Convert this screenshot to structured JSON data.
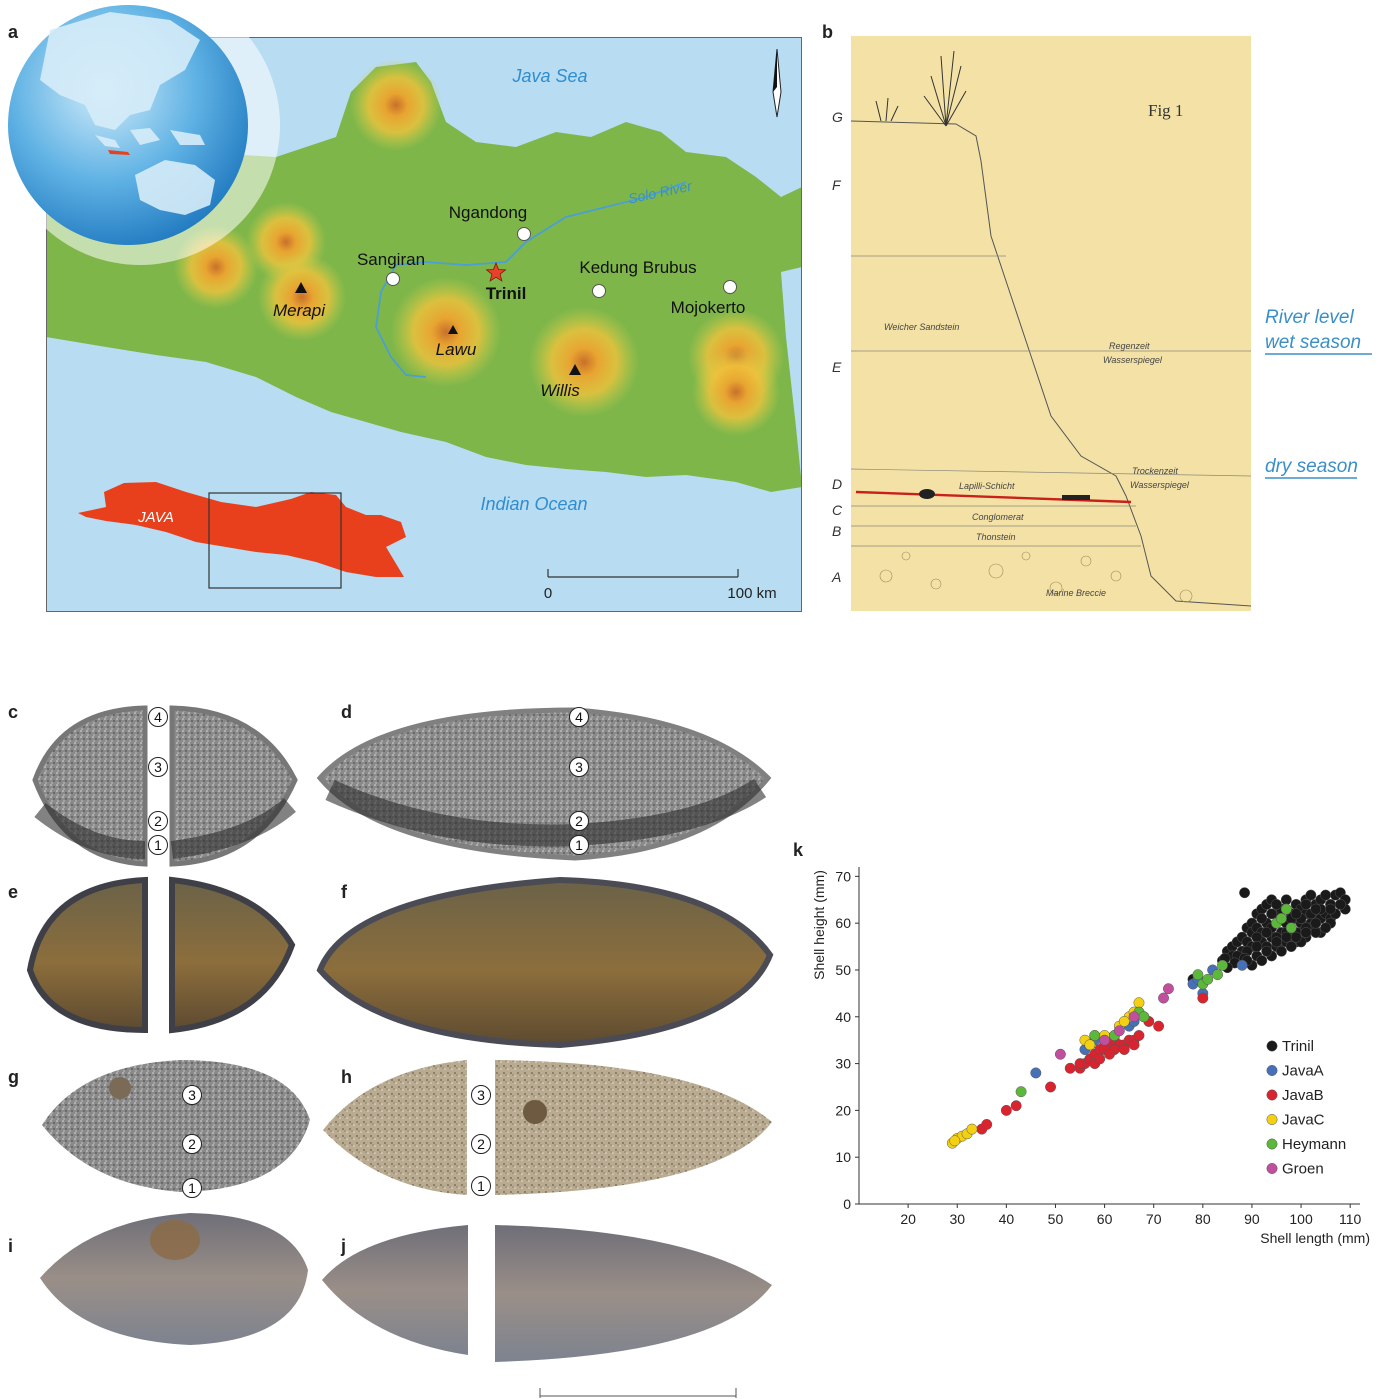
{
  "panels": {
    "a": "a",
    "b": "b",
    "c": "c",
    "d": "d",
    "e": "e",
    "f": "f",
    "g": "g",
    "h": "h",
    "i": "i",
    "j": "j",
    "k": "k"
  },
  "map": {
    "sea_north": "Java Sea",
    "sea_south": "Indian Ocean",
    "river": "Solo River",
    "sites": [
      "Ngandong",
      "Sangiran",
      "Kedung Brubus",
      "Mojokerto"
    ],
    "main_site": "Trinil",
    "volcanoes": [
      "Merapi",
      "Lawu",
      "Willis"
    ],
    "inset_label": "JAVA",
    "scale_start": "0",
    "scale_end": "100 km"
  },
  "section": {
    "layers": [
      "G",
      "F",
      "E",
      "D",
      "C",
      "B",
      "A"
    ],
    "fig_title": "Fig 1",
    "notes": {
      "weicher": "Weicher Sandstein",
      "regenzeit": "Regenzeit",
      "wasserspiegel_wet": "Wasserspiegel",
      "trockenzeit": "Trockenzeit",
      "wasserspiegel_dry": "Wasserspiegel",
      "lapilli": "Lapilli-Schicht",
      "conglomerat": "Conglomerat",
      "thonstein": "Thonstein",
      "marine": "Marine Breccie"
    },
    "river_level_1": "River level",
    "river_level_2": "wet season",
    "dry_season": "dry season"
  },
  "shells": {
    "markers": [
      "1",
      "2",
      "3",
      "4"
    ]
  },
  "colors": {
    "sea": "#b8dcf2",
    "land": "#7fb64a",
    "java_inset": "#e8401c",
    "river_text": "#3a8fc7",
    "paper": "#f3e1a6",
    "trinil": "#1a1a1a",
    "javaA": "#4670b8",
    "javaB": "#d9242f",
    "javaC": "#f4d012",
    "heymann": "#5cb83a",
    "groen": "#c04f9d"
  },
  "chart_data": {
    "type": "scatter",
    "title": "",
    "xlabel": "Shell length (mm)",
    "ylabel": "Shell height  (mm)",
    "xlim": [
      10,
      112
    ],
    "ylim": [
      0,
      72
    ],
    "xticks": [
      20,
      30,
      40,
      50,
      60,
      70,
      80,
      90,
      100,
      110
    ],
    "yticks": [
      0,
      10,
      20,
      30,
      40,
      50,
      60,
      70
    ],
    "legend_position": "right",
    "grid": false,
    "series": [
      {
        "name": "Trinil",
        "color": "#1a1a1a",
        "points": [
          [
            88.5,
            66.5
          ],
          [
            89,
            59
          ],
          [
            90,
            60
          ],
          [
            91,
            62
          ],
          [
            92,
            63
          ],
          [
            93,
            64
          ],
          [
            94,
            65
          ],
          [
            95,
            62
          ],
          [
            96,
            63
          ],
          [
            97,
            65
          ],
          [
            98,
            62
          ],
          [
            99,
            64
          ],
          [
            100,
            63
          ],
          [
            101,
            65
          ],
          [
            102,
            66
          ],
          [
            103,
            64
          ],
          [
            104,
            65
          ],
          [
            105,
            66
          ],
          [
            106,
            64
          ],
          [
            107,
            66
          ],
          [
            108,
            66.5
          ],
          [
            109,
            65
          ],
          [
            85,
            54
          ],
          [
            86,
            55
          ],
          [
            87,
            56
          ],
          [
            88,
            57
          ],
          [
            89,
            56
          ],
          [
            90,
            58
          ],
          [
            91,
            59
          ],
          [
            92,
            58
          ],
          [
            93,
            60
          ],
          [
            94,
            59
          ],
          [
            95,
            60
          ],
          [
            96,
            58
          ],
          [
            97,
            60
          ],
          [
            98,
            59
          ],
          [
            99,
            61
          ],
          [
            100,
            60
          ],
          [
            101,
            62
          ],
          [
            102,
            60
          ],
          [
            103,
            62
          ],
          [
            104,
            61
          ],
          [
            105,
            62
          ],
          [
            106,
            61
          ],
          [
            84,
            52
          ],
          [
            86,
            53
          ],
          [
            88,
            54
          ],
          [
            90,
            55
          ],
          [
            92,
            56
          ],
          [
            94,
            57
          ],
          [
            96,
            56
          ],
          [
            98,
            57
          ],
          [
            100,
            58
          ],
          [
            102,
            59
          ],
          [
            104,
            58
          ],
          [
            106,
            60
          ],
          [
            87,
            53
          ],
          [
            89,
            54
          ],
          [
            91,
            53
          ],
          [
            93,
            55
          ],
          [
            95,
            55
          ],
          [
            97,
            56
          ],
          [
            99,
            56
          ],
          [
            101,
            57
          ],
          [
            103,
            58
          ],
          [
            91,
            57
          ],
          [
            93,
            58
          ],
          [
            95,
            57
          ],
          [
            97,
            58
          ],
          [
            99,
            58
          ],
          [
            101,
            59
          ],
          [
            103,
            60
          ],
          [
            105,
            59
          ],
          [
            107,
            62
          ],
          [
            109,
            63
          ],
          [
            92,
            61
          ],
          [
            94,
            62
          ],
          [
            96,
            61
          ],
          [
            98,
            61
          ],
          [
            100,
            61
          ],
          [
            102,
            62
          ],
          [
            104,
            63
          ],
          [
            106,
            63
          ],
          [
            108,
            64
          ],
          [
            95,
            64
          ],
          [
            97,
            63
          ],
          [
            99,
            62
          ],
          [
            101,
            64
          ],
          [
            103,
            63
          ],
          [
            90,
            51
          ],
          [
            92,
            52
          ],
          [
            94,
            53
          ],
          [
            96,
            54
          ],
          [
            98,
            55
          ],
          [
            100,
            56
          ],
          [
            84.5,
            52.5
          ],
          [
            86.5,
            51.5
          ],
          [
            88.5,
            52.5
          ],
          [
            85,
            50.5
          ],
          [
            89,
            52
          ],
          [
            91,
            55
          ],
          [
            93,
            54
          ],
          [
            95,
            56
          ],
          [
            97,
            57
          ],
          [
            99,
            57
          ],
          [
            101,
            58
          ],
          [
            78,
            48
          ],
          [
            67,
            41
          ]
        ]
      },
      {
        "name": "JavaA",
        "color": "#4670b8",
        "points": [
          [
            46,
            28
          ],
          [
            56,
            33
          ],
          [
            58,
            35
          ],
          [
            62,
            36
          ],
          [
            65,
            38
          ],
          [
            66,
            39
          ],
          [
            68,
            40
          ],
          [
            78,
            47
          ],
          [
            79,
            48
          ],
          [
            80,
            45
          ],
          [
            82,
            50
          ],
          [
            88,
            51
          ],
          [
            57,
            34
          ],
          [
            61,
            35
          ]
        ]
      },
      {
        "name": "JavaB",
        "color": "#d9242f",
        "points": [
          [
            35,
            16
          ],
          [
            36,
            17
          ],
          [
            40,
            20
          ],
          [
            42,
            21
          ],
          [
            49,
            25
          ],
          [
            53,
            29
          ],
          [
            55,
            29
          ],
          [
            56,
            30
          ],
          [
            57,
            31
          ],
          [
            58,
            32
          ],
          [
            59,
            33
          ],
          [
            60,
            34
          ],
          [
            61,
            34
          ],
          [
            62,
            35
          ],
          [
            63,
            34
          ],
          [
            64,
            34
          ],
          [
            65,
            35
          ],
          [
            66,
            35
          ],
          [
            67,
            36
          ],
          [
            69,
            39
          ],
          [
            71,
            38
          ],
          [
            80,
            44
          ],
          [
            55,
            30
          ],
          [
            58,
            30
          ],
          [
            60,
            33
          ],
          [
            62,
            33
          ],
          [
            64,
            33
          ],
          [
            59,
            31
          ],
          [
            66,
            34
          ],
          [
            61,
            32
          ]
        ]
      },
      {
        "name": "JavaC",
        "color": "#f4d012",
        "points": [
          [
            29,
            13
          ],
          [
            30,
            14
          ],
          [
            31,
            14.5
          ],
          [
            32,
            15
          ],
          [
            33,
            16
          ],
          [
            29.5,
            13.5
          ],
          [
            56,
            35
          ],
          [
            57,
            34
          ],
          [
            58,
            36
          ],
          [
            60,
            36
          ],
          [
            63,
            38
          ],
          [
            65,
            40
          ],
          [
            66,
            41
          ],
          [
            67,
            43
          ],
          [
            64,
            39
          ]
        ]
      },
      {
        "name": "Heymann",
        "color": "#5cb83a",
        "points": [
          [
            43,
            24
          ],
          [
            58,
            36
          ],
          [
            62,
            36
          ],
          [
            67,
            41
          ],
          [
            68,
            40
          ],
          [
            79,
            49
          ],
          [
            80,
            47
          ],
          [
            81,
            48
          ],
          [
            83,
            49
          ],
          [
            84,
            51
          ],
          [
            95,
            60
          ],
          [
            96,
            61
          ],
          [
            97,
            63
          ],
          [
            98,
            59
          ]
        ]
      },
      {
        "name": "Groen",
        "color": "#c04f9d",
        "points": [
          [
            51,
            32
          ],
          [
            60,
            35
          ],
          [
            63,
            37
          ],
          [
            72,
            44
          ],
          [
            73,
            46
          ],
          [
            66,
            40
          ]
        ]
      }
    ]
  }
}
